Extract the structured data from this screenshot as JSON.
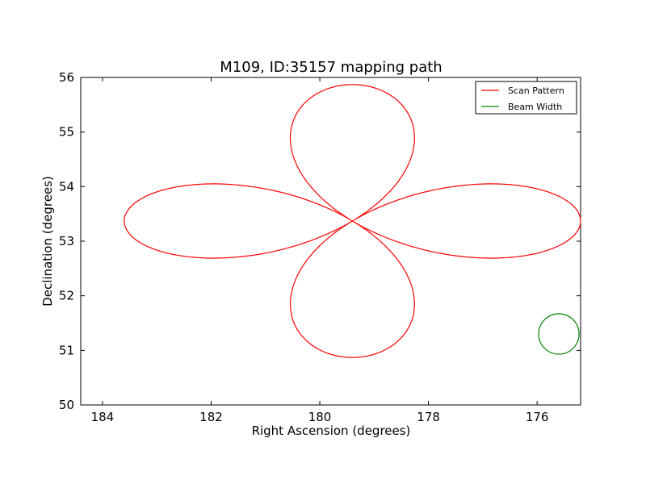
{
  "chart_data": {
    "type": "line",
    "title": "M109, ID:35157 mapping path",
    "xlabel": "Right Ascension (degrees)",
    "ylabel": "Declination (degrees)",
    "xlim": [
      184.4,
      175.2
    ],
    "ylim": [
      50,
      56
    ],
    "x_inverted": true,
    "xticks": [
      184,
      182,
      180,
      178,
      176
    ],
    "yticks": [
      50,
      51,
      52,
      53,
      54,
      55,
      56
    ],
    "grid": false,
    "legend": {
      "placement": "top-right",
      "entries": [
        "Scan Pattern",
        "Beam Width"
      ]
    },
    "series": [
      {
        "name": "Scan Pattern",
        "color": "#ff0000",
        "shape": "four-lobed rosette",
        "center": {
          "ra": 179.4,
          "dec": 53.37
        },
        "lobe_extent": {
          "east_ra": 183.6,
          "west_ra": 175.2,
          "north_dec": 55.87,
          "south_dec": 50.87,
          "horizontal_lobe_dec_range": [
            52.7,
            54.05
          ],
          "vertical_lobe_ra_range": [
            180.6,
            178.2
          ]
        }
      },
      {
        "name": "Beam Width",
        "color": "#008000",
        "shape": "circle",
        "center": {
          "ra": 175.6,
          "dec": 51.3
        },
        "radius_dec": 0.37
      }
    ]
  }
}
